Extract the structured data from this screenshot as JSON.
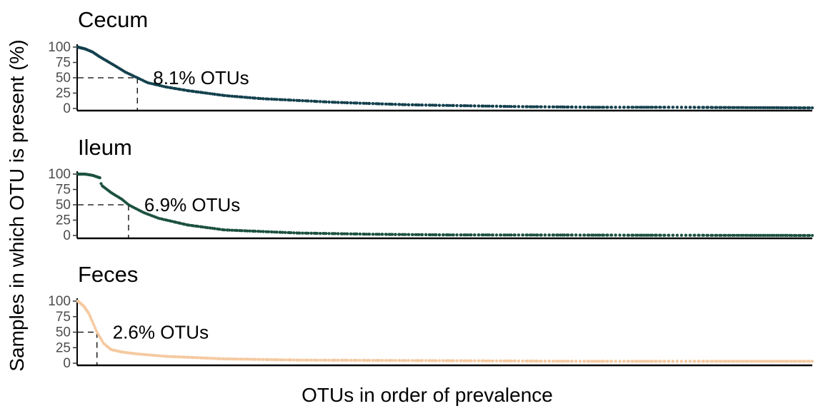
{
  "chart_data": {
    "type": "scatter",
    "xlabel": "OTUs in order of prevalence",
    "ylabel": "Samples in which OTU is present (%)",
    "y_ticks": [
      "100",
      "75",
      "50",
      "25",
      "0"
    ],
    "ylim": [
      0,
      100
    ],
    "xlim": [
      0,
      1000
    ],
    "grid": false,
    "legend": "none",
    "panels": [
      {
        "title": "Cecum",
        "color": "#14414e",
        "annotation": "8.1% OTUs",
        "threshold_y": 50,
        "threshold_x_fraction": 0.081,
        "curve": [
          [
            0,
            100
          ],
          [
            10,
            97
          ],
          [
            20,
            92
          ],
          [
            30,
            84
          ],
          [
            50,
            70
          ],
          [
            65,
            59
          ],
          [
            81,
            50
          ],
          [
            95,
            42
          ],
          [
            120,
            35
          ],
          [
            150,
            29
          ],
          [
            200,
            21
          ],
          [
            250,
            16
          ],
          [
            300,
            13
          ],
          [
            350,
            10
          ],
          [
            400,
            8
          ],
          [
            450,
            6
          ],
          [
            500,
            5
          ],
          [
            600,
            3
          ],
          [
            700,
            2
          ],
          [
            800,
            2
          ],
          [
            1000,
            1
          ]
        ]
      },
      {
        "title": "Ileum",
        "color": "#1c5141",
        "annotation": "6.9% OTUs",
        "threshold_y": 50,
        "threshold_x_fraction": 0.069,
        "curve": [
          [
            0,
            100
          ],
          [
            10,
            100
          ],
          [
            20,
            98
          ],
          [
            30,
            94
          ],
          [
            32,
            82
          ],
          [
            45,
            70
          ],
          [
            60,
            59
          ],
          [
            69,
            50
          ],
          [
            90,
            37
          ],
          [
            110,
            28
          ],
          [
            150,
            17
          ],
          [
            200,
            9
          ],
          [
            260,
            6
          ],
          [
            300,
            4
          ],
          [
            400,
            2
          ],
          [
            500,
            1
          ],
          [
            1000,
            0
          ]
        ]
      },
      {
        "title": "Feces",
        "color": "#f5c9a0",
        "annotation": "2.6% OTUs",
        "threshold_y": 50,
        "threshold_x_fraction": 0.026,
        "curve": [
          [
            0,
            100
          ],
          [
            8,
            92
          ],
          [
            15,
            80
          ],
          [
            26,
            50
          ],
          [
            35,
            32
          ],
          [
            45,
            22
          ],
          [
            60,
            18
          ],
          [
            80,
            15
          ],
          [
            120,
            11
          ],
          [
            200,
            7
          ],
          [
            300,
            5
          ],
          [
            500,
            4
          ],
          [
            700,
            3
          ],
          [
            1000,
            3
          ]
        ]
      }
    ]
  }
}
